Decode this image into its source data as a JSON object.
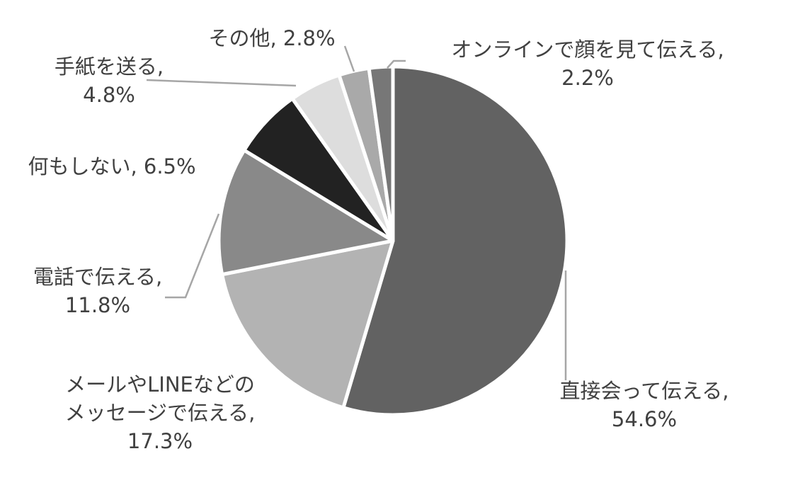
{
  "chart_data": {
    "type": "pie",
    "start_angle_deg": 0,
    "direction": "clockwise",
    "slices": [
      {
        "label": "直接会って伝える",
        "value": 54.6,
        "value_text": "54.6%",
        "color": "#626262"
      },
      {
        "label": "メールやLINEなどのメッセージで伝える",
        "value": 17.3,
        "value_text": "17.3%",
        "color": "#b3b3b3"
      },
      {
        "label": "電話で伝える",
        "value": 11.8,
        "value_text": "11.8%",
        "color": "#898989"
      },
      {
        "label": "何もしない",
        "value": 6.5,
        "value_text": "6.5%",
        "color": "#222222"
      },
      {
        "label": "手紙を送る",
        "value": 4.8,
        "value_text": "4.8%",
        "color": "#dddddd"
      },
      {
        "label": "その他",
        "value": 2.8,
        "value_text": "2.8%",
        "color": "#a9a9a9"
      },
      {
        "label": "オンラインで顔を見て伝える",
        "value": 2.2,
        "value_text": "2.2%",
        "color": "#777777"
      }
    ],
    "label_lines": [
      [
        "直接会って伝える,",
        "54.6%"
      ],
      [
        "メールやLINEなどの",
        "メッセージで伝える,",
        "17.3%"
      ],
      [
        "電話で伝える,",
        "11.8%"
      ],
      [
        "何もしない, 6.5%"
      ],
      [
        "手紙を送る,",
        "4.8%"
      ],
      [
        "その他, 2.8%"
      ],
      [
        "オンラインで顔を見て伝える,",
        "2.2%"
      ]
    ],
    "leader_color": "#a6a6a6",
    "border_color": "#ffffff",
    "label_color": "#404040"
  }
}
